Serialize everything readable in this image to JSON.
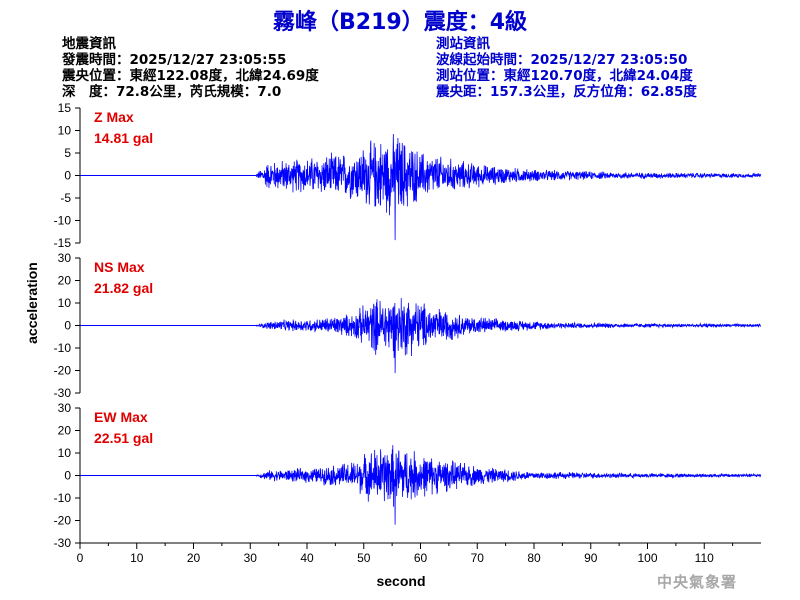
{
  "header": {
    "title": "霧峰（B219）震度：4級"
  },
  "quake_info": {
    "heading": "地震資訊",
    "origin_time": "發震時間：2025/12/27 23:05:55",
    "epicenter": "震央位置：東經122.08度，北緯24.69度",
    "depth_magnitude": "深　度：72.8公里，芮氏規模：7.0"
  },
  "station_info": {
    "heading": "測站資訊",
    "wave_start": "波線起始時間：2025/12/27 23:05:50",
    "location": "測站位置：東經120.70度，北緯24.04度",
    "distance_azimuth": "震央距：157.3公里，反方位角：62.85度"
  },
  "footer": {
    "agency": "中央氣象署"
  },
  "colors": {
    "title": "#0000cc",
    "station_text": "#0000cc",
    "trace": "#0000ff",
    "max_label": "#e00000"
  },
  "chart_data": {
    "type": "line",
    "xlabel": "second",
    "ylabel": "acceleration",
    "xlim": [
      0,
      120
    ],
    "xticks": [
      0,
      10,
      20,
      30,
      40,
      50,
      60,
      70,
      80,
      90,
      100,
      110
    ],
    "xtick_labels": [
      "0",
      "10",
      "20",
      "30",
      "40",
      "50",
      "60",
      "70",
      "80",
      "90",
      "100",
      "110"
    ],
    "grid": false,
    "panels": [
      {
        "component": "Z",
        "max_label": "Z Max",
        "max_value_label": "14.81 gal",
        "max_value": 14.81,
        "ylim": [
          -15,
          15
        ],
        "yticks": [
          15,
          10,
          5,
          0,
          -5,
          -10,
          -15
        ],
        "ytick_labels": [
          "15",
          "10",
          "5",
          "0",
          "-5",
          "-10",
          "-15"
        ],
        "onset": 31,
        "envelope": [
          [
            0,
            0
          ],
          [
            31,
            0.3
          ],
          [
            33,
            3.5
          ],
          [
            40,
            4.5
          ],
          [
            48,
            6
          ],
          [
            52,
            9
          ],
          [
            56,
            10.5
          ],
          [
            60,
            6
          ],
          [
            66,
            4
          ],
          [
            72,
            2.5
          ],
          [
            80,
            1.5
          ],
          [
            95,
            0.8
          ],
          [
            120,
            0.5
          ]
        ]
      },
      {
        "component": "NS",
        "max_label": "NS Max",
        "max_value_label": "21.82 gal",
        "max_value": 21.82,
        "ylim": [
          -30,
          30
        ],
        "yticks": [
          30,
          20,
          10,
          0,
          -10,
          -20,
          -30
        ],
        "ytick_labels": [
          "30",
          "20",
          "10",
          "0",
          "-10",
          "-20",
          "-30"
        ],
        "onset": 31,
        "envelope": [
          [
            0,
            0
          ],
          [
            31,
            0.3
          ],
          [
            34,
            2.5
          ],
          [
            42,
            3.5
          ],
          [
            48,
            6
          ],
          [
            52,
            14
          ],
          [
            57,
            16
          ],
          [
            62,
            10
          ],
          [
            68,
            5
          ],
          [
            75,
            3
          ],
          [
            85,
            1.5
          ],
          [
            100,
            1
          ],
          [
            120,
            0.7
          ]
        ]
      },
      {
        "component": "EW",
        "max_label": "EW Max",
        "max_value_label": "22.51 gal",
        "max_value": 22.51,
        "ylim": [
          -30,
          30
        ],
        "yticks": [
          30,
          20,
          10,
          0,
          -10,
          -20,
          -30
        ],
        "ytick_labels": [
          "30",
          "20",
          "10",
          "0",
          "-10",
          "-20",
          "-30"
        ],
        "onset": 31,
        "envelope": [
          [
            0,
            0
          ],
          [
            31,
            0.3
          ],
          [
            33,
            2.5
          ],
          [
            42,
            4
          ],
          [
            48,
            7
          ],
          [
            52,
            14
          ],
          [
            56,
            16
          ],
          [
            60,
            11
          ],
          [
            66,
            7
          ],
          [
            72,
            4
          ],
          [
            80,
            2
          ],
          [
            95,
            1.2
          ],
          [
            120,
            0.8
          ]
        ]
      }
    ]
  }
}
